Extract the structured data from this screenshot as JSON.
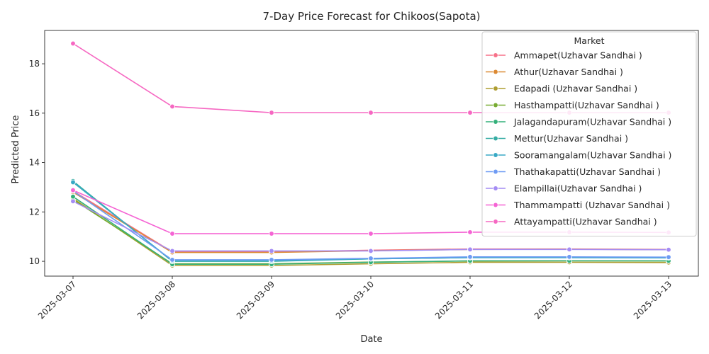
{
  "chart_data": {
    "type": "line",
    "title": "7-Day Price Forecast for Chikoos(Sapota)",
    "xlabel": "Date",
    "ylabel": "Predicted Price",
    "x": [
      "2025-03-07",
      "2025-03-08",
      "2025-03-09",
      "2025-03-10",
      "2025-03-11",
      "2025-03-12",
      "2025-03-13"
    ],
    "ylim": [
      9.4,
      19.35
    ],
    "yticks": [
      10,
      12,
      14,
      16,
      18
    ],
    "grid": false,
    "legend": {
      "title": "Market",
      "placement": "top-right"
    },
    "series": [
      {
        "name": "Ammapet(Uzhavar Sandhai )",
        "color": "#f77189",
        "values": [
          12.85,
          10.38,
          10.38,
          10.45,
          10.5,
          10.5,
          10.48
        ]
      },
      {
        "name": "Athur(Uzhavar Sandhai )",
        "color": "#dc8932",
        "values": [
          12.8,
          10.36,
          10.36,
          10.43,
          10.48,
          10.49,
          10.47
        ]
      },
      {
        "name": "Edapadi (Uzhavar Sandhai )",
        "color": "#ae9d31",
        "values": [
          12.55,
          9.83,
          9.83,
          9.9,
          9.96,
          9.96,
          9.95
        ]
      },
      {
        "name": "Hasthampatti(Uzhavar Sandhai )",
        "color": "#77ab31",
        "values": [
          12.5,
          9.9,
          9.9,
          9.97,
          10.01,
          10.02,
          10.01
        ]
      },
      {
        "name": "Jalagandapuram(Uzhavar Sandhai )",
        "color": "#33b07a",
        "values": [
          12.62,
          9.88,
          9.88,
          9.96,
          10.02,
          10.02,
          10.02
        ]
      },
      {
        "name": "Mettur(Uzhavar Sandhai )",
        "color": "#36ada4",
        "values": [
          13.25,
          10.0,
          10.0,
          10.1,
          10.15,
          10.15,
          10.15
        ]
      },
      {
        "name": "Sooramangalam(Uzhavar Sandhai )",
        "color": "#38a9c5",
        "values": [
          13.2,
          10.02,
          10.02,
          10.1,
          10.15,
          10.15,
          10.14
        ]
      },
      {
        "name": "Thathakapatti(Uzhavar Sandhai )",
        "color": "#6e9bf4",
        "values": [
          12.85,
          10.06,
          10.06,
          10.12,
          10.18,
          10.18,
          10.17
        ]
      },
      {
        "name": "Elampillai(Uzhavar Sandhai )",
        "color": "#a48cf4",
        "values": [
          12.43,
          10.42,
          10.42,
          10.42,
          10.48,
          10.48,
          10.47
        ]
      },
      {
        "name": "Thammampatti (Uzhavar Sandhai )",
        "color": "#f564d4",
        "values": [
          12.88,
          11.12,
          11.12,
          11.12,
          11.18,
          11.18,
          11.17
        ]
      },
      {
        "name": "Attayampatti(Uzhavar Sandhai )",
        "color": "#f668c2",
        "values": [
          18.82,
          16.27,
          16.02,
          16.02,
          16.02,
          16.02,
          16.02
        ]
      }
    ]
  }
}
